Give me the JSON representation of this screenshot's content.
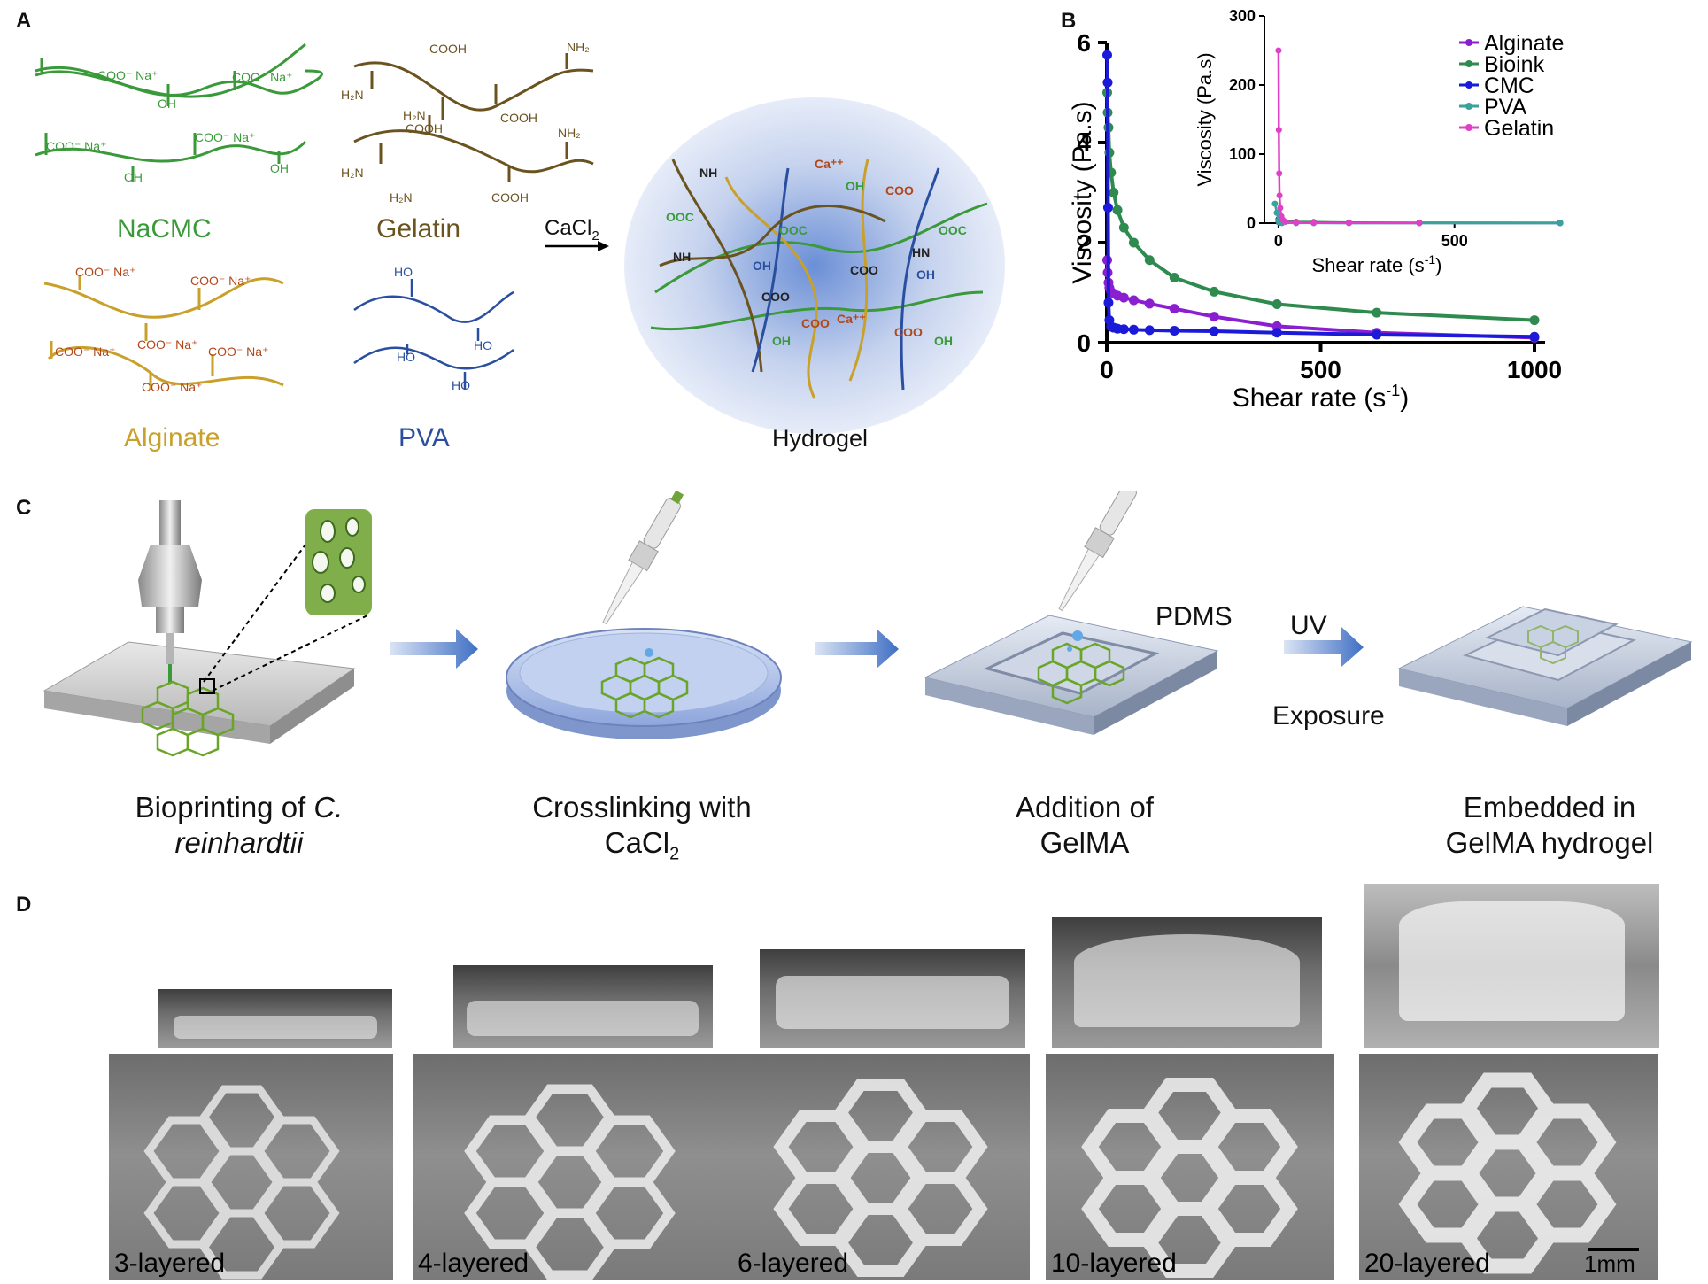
{
  "panels": {
    "a": "A",
    "b": "B",
    "c": "C",
    "d": "D"
  },
  "panelA": {
    "polymers": {
      "nacmc": "NaCMC",
      "gelatin": "Gelatin",
      "alginate": "Alginate",
      "pva": "PVA"
    },
    "reagent": "CaCl",
    "reagent_sub": "2",
    "product": "Hydrogel",
    "groups": {
      "coo_na": "COO⁻ Na⁺",
      "oh": "OH",
      "cooh": "COOH",
      "nh2": "NH₂",
      "h2n": "H₂N",
      "ho": "HO",
      "coona_plain": "COO⁻ Na⁺"
    },
    "hydrogel_labels": {
      "nh": "NH",
      "hn": "HN",
      "coo": "COO",
      "ooc": "OOC",
      "ca": "Ca⁺⁺",
      "oh": "OH"
    },
    "colors": {
      "nacmc": "#3a9a3a",
      "gelatin": "#6b5320",
      "alginate": "#c8a02a",
      "pva": "#2a4fa0",
      "ionic": "#b2471a"
    }
  },
  "panelC": {
    "steps": [
      {
        "line1": "Bioprinting of ",
        "italic1": "C.",
        "line2_italic": "reinhardtii"
      },
      {
        "line1": "Crosslinking with",
        "line2": "CaCl",
        "line2_sub": "2"
      },
      {
        "line1": "Addition of",
        "line2": "GelMA"
      },
      {
        "line1": "Embedded in",
        "line2": "GelMA hydrogel"
      }
    ],
    "pdms_label": "PDMS",
    "uv_label_1": "UV",
    "uv_label_2": "Exposure"
  },
  "panelD": {
    "labels": [
      "3-layered",
      "4-layered",
      "6-layered",
      "10-layered",
      "20-layered"
    ],
    "scalebar": "1mm"
  },
  "chart_data": {
    "type": "line",
    "xlabel": "Shear rate (s",
    "xlabel_sup": "-1",
    "xlabel_end": ")",
    "ylabel": "Viscosity (Pa.s)",
    "xlim": [
      0,
      1000
    ],
    "ylim": [
      0,
      6
    ],
    "xticks": [
      0,
      500,
      1000
    ],
    "yticks": [
      0,
      2,
      4,
      6
    ],
    "legend": [
      "Alginate",
      "Bioink",
      "CMC",
      "PVA",
      "Gelatin"
    ],
    "series": [
      {
        "name": "Alginate",
        "color": "#8a1fd0",
        "x": [
          1,
          2,
          4,
          6,
          10,
          16,
          25,
          40,
          63,
          100,
          158,
          251,
          398,
          631,
          1000
        ],
        "y": [
          1.65,
          1.4,
          1.2,
          1.1,
          1.02,
          0.98,
          0.94,
          0.9,
          0.85,
          0.78,
          0.68,
          0.52,
          0.33,
          0.2,
          0.1
        ]
      },
      {
        "name": "Bioink",
        "color": "#2e8a4e",
        "x": [
          1,
          2,
          4,
          6,
          10,
          16,
          25,
          40,
          63,
          100,
          158,
          251,
          398,
          631,
          1000
        ],
        "y": [
          5.0,
          4.6,
          4.3,
          3.8,
          3.4,
          3.0,
          2.65,
          2.3,
          2.0,
          1.65,
          1.3,
          1.02,
          0.77,
          0.6,
          0.45
        ]
      },
      {
        "name": "CMC",
        "color": "#1a1ad8",
        "x": [
          1,
          2,
          3,
          4,
          6,
          10,
          16,
          25,
          40,
          63,
          100,
          158,
          251,
          398,
          631,
          1000
        ],
        "y": [
          5.75,
          5.2,
          2.7,
          0.8,
          0.45,
          0.32,
          0.3,
          0.28,
          0.27,
          0.26,
          0.25,
          0.24,
          0.23,
          0.2,
          0.16,
          0.12
        ]
      }
    ],
    "inset": {
      "xlabel": "Shear rate (s",
      "xlabel_sup": "-1",
      "xlabel_end": ")",
      "ylabel": "Viscosity (Pa.s)",
      "xlim": [
        -40,
        800
      ],
      "ylim": [
        0,
        300
      ],
      "xticks": [
        0,
        500
      ],
      "yticks": [
        0,
        100,
        200,
        300
      ],
      "series": [
        {
          "name": "Alginate",
          "color": "#8a1fd0",
          "x": [
            0,
            2,
            5,
            10,
            50,
            100,
            200,
            400,
            800
          ],
          "y": [
            1.6,
            1.2,
            1.0,
            0.9,
            0.8,
            0.7,
            0.5,
            0.3,
            0.1
          ]
        },
        {
          "name": "Bioink",
          "color": "#2e8a4e",
          "x": [
            0,
            2,
            5,
            10,
            50,
            100,
            200,
            400,
            800
          ],
          "y": [
            5,
            4.4,
            3.6,
            3.0,
            2.0,
            1.6,
            1.0,
            0.7,
            0.5
          ]
        },
        {
          "name": "CMC",
          "color": "#1a1ad8",
          "x": [
            0,
            2,
            5,
            10,
            50,
            100,
            200,
            400,
            800
          ],
          "y": [
            5.7,
            3.0,
            0.5,
            0.3,
            0.27,
            0.25,
            0.22,
            0.2,
            0.12
          ]
        },
        {
          "name": "PVA",
          "color": "#3aa29a",
          "x": [
            -10,
            -5,
            0,
            2,
            5,
            10,
            50,
            100,
            200,
            400,
            800
          ],
          "y": [
            28,
            15,
            4,
            1,
            0.5,
            0.3,
            0.1,
            0.1,
            0.05,
            0.05,
            0.05
          ]
        },
        {
          "name": "Gelatin",
          "color": "#e040c8",
          "x": [
            0,
            1,
            2,
            3,
            5,
            8,
            12,
            20,
            50,
            100,
            200,
            400
          ],
          "y": [
            250,
            135,
            72,
            40,
            22,
            10,
            5,
            2,
            1,
            0.5,
            0.3,
            0.2
          ]
        }
      ]
    }
  }
}
